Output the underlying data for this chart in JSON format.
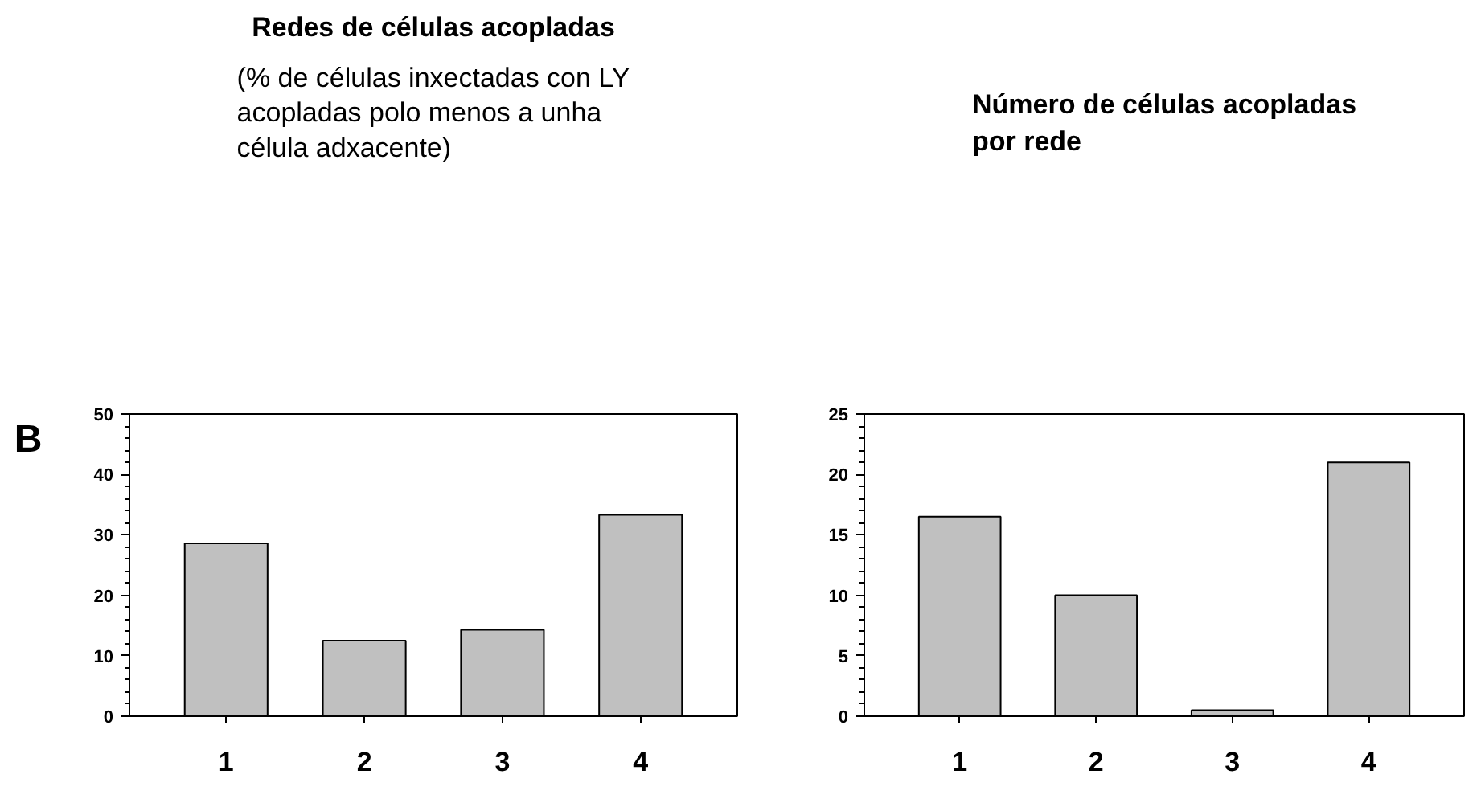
{
  "chart_data": [
    {
      "type": "bar",
      "title": "Redes de células acopladas",
      "subtitle": "(% de células inxectadas con LY\nacopladas polo menos a unha\ncélula adxacente)",
      "annotations": [
        "B"
      ],
      "categories": [
        "1",
        "2",
        "3",
        "4"
      ],
      "values": [
        28.6,
        12.5,
        14.3,
        33.3
      ],
      "color": "#c0c0c0",
      "ylim": [
        0,
        50
      ],
      "yticks": [
        0,
        10,
        20,
        30,
        40,
        50
      ],
      "grid": false
    },
    {
      "type": "bar",
      "title": "Número de células acopladas\npor rede",
      "categories": [
        "1",
        "2",
        "3",
        "4"
      ],
      "values": [
        16.5,
        10.0,
        0.5,
        21.0
      ],
      "color": "#c0c0c0",
      "ylim": [
        0,
        25
      ],
      "yticks": [
        0,
        5,
        10,
        15,
        20,
        25
      ],
      "grid": false
    }
  ]
}
